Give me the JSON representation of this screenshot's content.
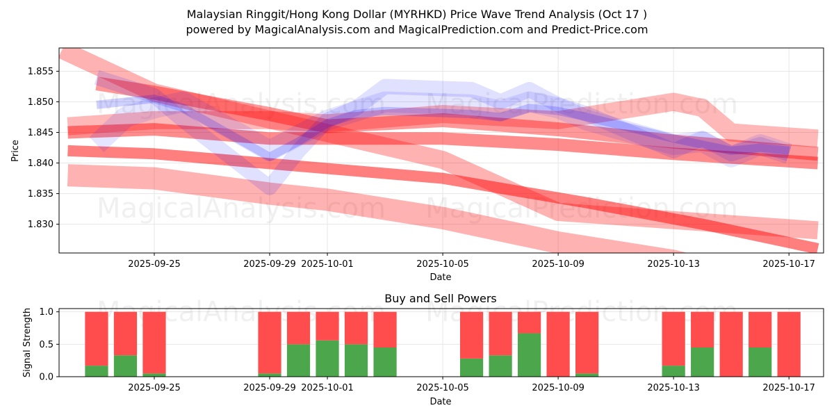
{
  "title_line1": "Malaysian Ringgit/Hong Kong Dollar (MYRHKD) Price Wave Trend Analysis (Oct 17 )",
  "title_line2": "powered by MagicalAnalysis.com and MagicalPrediction.com and Predict-Price.com",
  "watermarks": [
    "MagicalAnalysis.com",
    "MagicalPrediction.com"
  ],
  "chart_data": [
    {
      "type": "line",
      "title": "",
      "xlabel": "Date",
      "ylabel": "Price",
      "xlim": [
        "2025-09-21.7",
        "2025-10-18.2"
      ],
      "ylim": [
        1.8253,
        1.8588
      ],
      "x_ticks": [
        "2025-09-25",
        "2025-09-29",
        "2025-10-01",
        "2025-10-05",
        "2025-10-09",
        "2025-10-13",
        "2025-10-17"
      ],
      "y_ticks": [
        "1.830",
        "1.835",
        "1.840",
        "1.845",
        "1.850",
        "1.855"
      ],
      "grid": true,
      "colors": {
        "trend": "#ff0000",
        "wave": "#0000ff",
        "grid": "#e6e6e6"
      },
      "series": [
        {
          "name": "trend-band-1",
          "kind": "trend",
          "x": [
            "2025-09-21.8",
            "2025-09-25",
            "2025-10-05",
            "2025-10-09",
            "2025-10-18"
          ],
          "y": [
            1.8585,
            1.8515,
            1.8405,
            1.832,
            1.829
          ]
        },
        {
          "name": "trend-band-2",
          "kind": "trend",
          "x": [
            "2025-09-22",
            "2025-09-25",
            "2025-09-30",
            "2025-10-05",
            "2025-10-10",
            "2025-10-14",
            "2025-10-18"
          ],
          "y": [
            1.842,
            1.8415,
            1.8395,
            1.8375,
            1.8335,
            1.83,
            1.826
          ]
        },
        {
          "name": "trend-band-3",
          "kind": "trend",
          "x": [
            "2025-09-22",
            "2025-09-25",
            "2025-09-29",
            "2025-10-01",
            "2025-10-05",
            "2025-10-09",
            "2025-10-13",
            "2025-10-18"
          ],
          "y": [
            1.838,
            1.8375,
            1.835,
            1.834,
            1.831,
            1.827,
            1.824,
            1.818
          ]
        },
        {
          "name": "trend-band-4",
          "kind": "trend",
          "x": [
            "2025-09-22",
            "2025-09-25",
            "2025-09-29",
            "2025-10-05",
            "2025-10-09",
            "2025-10-13",
            "2025-10-18"
          ],
          "y": [
            1.845,
            1.8455,
            1.844,
            1.844,
            1.843,
            1.8415,
            1.84
          ]
        },
        {
          "name": "trend-band-5",
          "kind": "trend",
          "x": [
            "2025-09-22",
            "2025-09-25",
            "2025-09-29",
            "2025-10-01",
            "2025-10-05",
            "2025-10-09",
            "2025-10-13",
            "2025-10-14",
            "2025-10-15",
            "2025-10-18"
          ],
          "y": [
            1.846,
            1.847,
            1.847,
            1.8465,
            1.848,
            1.847,
            1.85,
            1.849,
            1.845,
            1.844
          ]
        },
        {
          "name": "trend-band-6",
          "kind": "trend",
          "x": [
            "2025-09-23",
            "2025-09-25",
            "2025-09-29",
            "2025-10-01",
            "2025-10-05",
            "2025-10-09",
            "2025-10-13",
            "2025-10-18"
          ],
          "y": [
            1.853,
            1.8515,
            1.848,
            1.846,
            1.847,
            1.8455,
            1.8435,
            1.8415
          ]
        },
        {
          "name": "wave-1",
          "kind": "wave",
          "x": [
            "2025-09-23",
            "2025-09-24",
            "2025-09-25",
            "2025-09-26",
            "2025-09-29",
            "2025-09-30",
            "2025-10-01",
            "2025-10-02",
            "2025-10-03",
            "2025-10-06",
            "2025-10-07",
            "2025-10-08",
            "2025-10-09",
            "2025-10-10",
            "2025-10-13",
            "2025-10-14",
            "2025-10-15",
            "2025-10-16",
            "2025-10-17"
          ],
          "y": [
            1.8495,
            1.85,
            1.8505,
            1.849,
            1.841,
            1.8435,
            1.8465,
            1.848,
            1.8485,
            1.848,
            1.8475,
            1.849,
            1.8485,
            1.8475,
            1.844,
            1.843,
            1.842,
            1.8425,
            1.842
          ]
        },
        {
          "name": "wave-2",
          "kind": "wave",
          "x": [
            "2025-09-23",
            "2025-09-24",
            "2025-09-25",
            "2025-09-26",
            "2025-09-29",
            "2025-09-30",
            "2025-10-01",
            "2025-10-02",
            "2025-10-03",
            "2025-10-06",
            "2025-10-07",
            "2025-10-08",
            "2025-10-09",
            "2025-10-10",
            "2025-10-13",
            "2025-10-14",
            "2025-10-15",
            "2025-10-16",
            "2025-10-17"
          ],
          "y": [
            1.854,
            1.8525,
            1.851,
            1.847,
            1.836,
            1.842,
            1.847,
            1.849,
            1.8525,
            1.852,
            1.85,
            1.852,
            1.8495,
            1.848,
            1.842,
            1.844,
            1.8415,
            1.843,
            1.8415
          ]
        },
        {
          "name": "wave-3",
          "kind": "wave",
          "x": [
            "2025-09-23",
            "2025-09-24",
            "2025-09-25",
            "2025-09-26",
            "2025-09-29",
            "2025-09-30",
            "2025-10-01",
            "2025-10-02",
            "2025-10-03",
            "2025-10-06",
            "2025-10-07",
            "2025-10-08",
            "2025-10-09",
            "2025-10-10",
            "2025-10-13",
            "2025-10-14",
            "2025-10-15",
            "2025-10-16",
            "2025-10-17"
          ],
          "y": [
            1.843,
            1.8475,
            1.849,
            1.85,
            1.842,
            1.8445,
            1.847,
            1.8485,
            1.85,
            1.8495,
            1.8485,
            1.85,
            1.849,
            1.847,
            1.843,
            1.8435,
            1.841,
            1.843,
            1.8415
          ]
        }
      ]
    },
    {
      "type": "bar",
      "stacked": true,
      "title": "Buy and Sell Powers",
      "xlabel": "Date",
      "ylabel": "Signal Strength",
      "ylim": [
        0,
        1.05
      ],
      "x_ticks": [
        "2025-09-25",
        "2025-09-29",
        "2025-10-01",
        "2025-10-05",
        "2025-10-09",
        "2025-10-13",
        "2025-10-17"
      ],
      "y_ticks": [
        "0.0",
        "0.5",
        "1.0"
      ],
      "grid": true,
      "colors": {
        "buy": "#4ca64c",
        "sell": "#ff4d4d"
      },
      "categories": [
        "2025-09-23",
        "2025-09-24",
        "2025-09-25",
        "2025-09-29",
        "2025-09-30",
        "2025-10-01",
        "2025-10-02",
        "2025-10-03",
        "2025-10-06",
        "2025-10-07",
        "2025-10-08",
        "2025-10-09",
        "2025-10-10",
        "2025-10-13",
        "2025-10-14",
        "2025-10-15",
        "2025-10-16",
        "2025-10-17"
      ],
      "series": [
        {
          "name": "Buy",
          "values": [
            0.17,
            0.33,
            0.05,
            0.05,
            0.5,
            0.56,
            0.5,
            0.45,
            0.28,
            0.33,
            0.67,
            0.0,
            0.05,
            0.17,
            0.45,
            0.0,
            0.45,
            0.0
          ]
        },
        {
          "name": "Sell",
          "values": [
            0.83,
            0.67,
            0.95,
            0.95,
            0.5,
            0.44,
            0.5,
            0.55,
            0.72,
            0.67,
            0.33,
            1.0,
            0.95,
            0.83,
            0.55,
            1.0,
            0.55,
            1.0
          ]
        }
      ]
    }
  ]
}
